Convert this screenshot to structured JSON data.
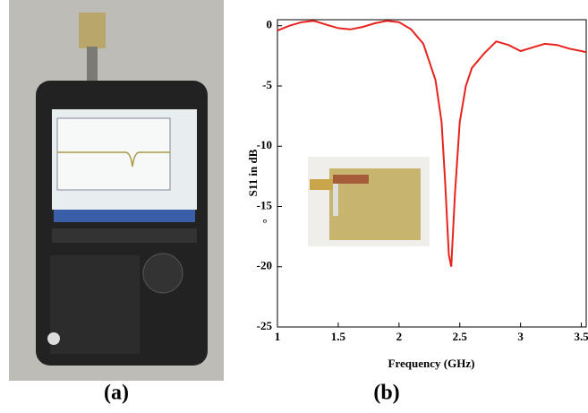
{
  "captions": [
    "(a)",
    "(b)"
  ],
  "chart_data": {
    "type": "line",
    "xlabel": "Frequency (GHz)",
    "ylabel": "S11 in dB",
    "annotation": "°",
    "x": [
      1,
      1.1,
      1.2,
      1.3,
      1.4,
      1.5,
      1.6,
      1.7,
      1.8,
      1.9,
      2.0,
      2.1,
      2.2,
      2.3,
      2.35,
      2.38,
      2.41,
      2.43,
      2.46,
      2.5,
      2.55,
      2.6,
      2.7,
      2.8,
      2.9,
      3.0,
      3.1,
      3.2,
      3.3,
      3.4,
      3.5,
      3.54
    ],
    "series": [
      {
        "color": "#e8231e",
        "values": [
          -0.4,
          0,
          0.3,
          0.4,
          0.1,
          -0.2,
          -0.3,
          -0.1,
          0.2,
          0.4,
          0.3,
          -0.3,
          -1.5,
          -4.5,
          -8,
          -13,
          -19,
          -20,
          -14,
          -8,
          -5,
          -3.5,
          -2.3,
          -1.3,
          -1.6,
          -2.1,
          -1.8,
          -1.5,
          -1.6,
          -1.9,
          -2.1,
          -2.2
        ]
      }
    ],
    "xlim": [
      1,
      3.54
    ],
    "xticks": [
      1,
      1.5,
      2,
      2.5,
      3,
      3.5
    ],
    "ylim": [
      -25,
      0.5
    ],
    "yticks": [
      0,
      -5,
      -10,
      -15,
      -20,
      -25
    ]
  }
}
